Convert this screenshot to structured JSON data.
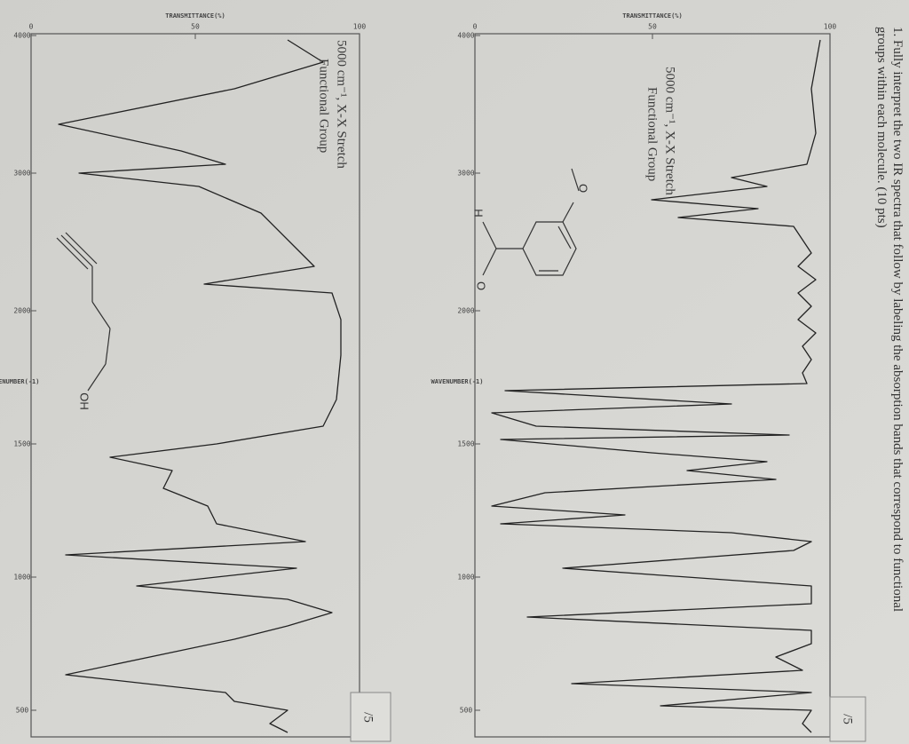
{
  "question": "1. Fully interpret the two IR spectra that follow by labeling the absorption bands that correspond to functional groups within each molecule. (10 pts)",
  "spectra": [
    {
      "annotation_line1": "5000 cm⁻¹, X-X Stretch",
      "annotation_line2": "Functional Group",
      "y_axis_label": "TRANSMITTANCE(%)",
      "x_axis_label": "WAVENUMBER(-1)",
      "x_ticks": [
        4000,
        3000,
        2000,
        1500,
        1000,
        500
      ],
      "y_ticks": [
        0,
        50,
        100
      ],
      "molecule_labels": [
        "O",
        "H"
      ],
      "score": "/5"
    },
    {
      "annotation_line1": "5000 cm⁻¹, X-X Stretch",
      "annotation_line2": "Functional Group",
      "y_axis_label": "TRANSMITTANCE(%)",
      "x_axis_label": "WAVENUMBER(-1)",
      "x_ticks": [
        4000,
        3000,
        2000,
        1500,
        1000,
        500
      ],
      "y_ticks": [
        0,
        50,
        100
      ],
      "molecule_labels": [
        "OH"
      ],
      "score": "/5"
    }
  ]
}
